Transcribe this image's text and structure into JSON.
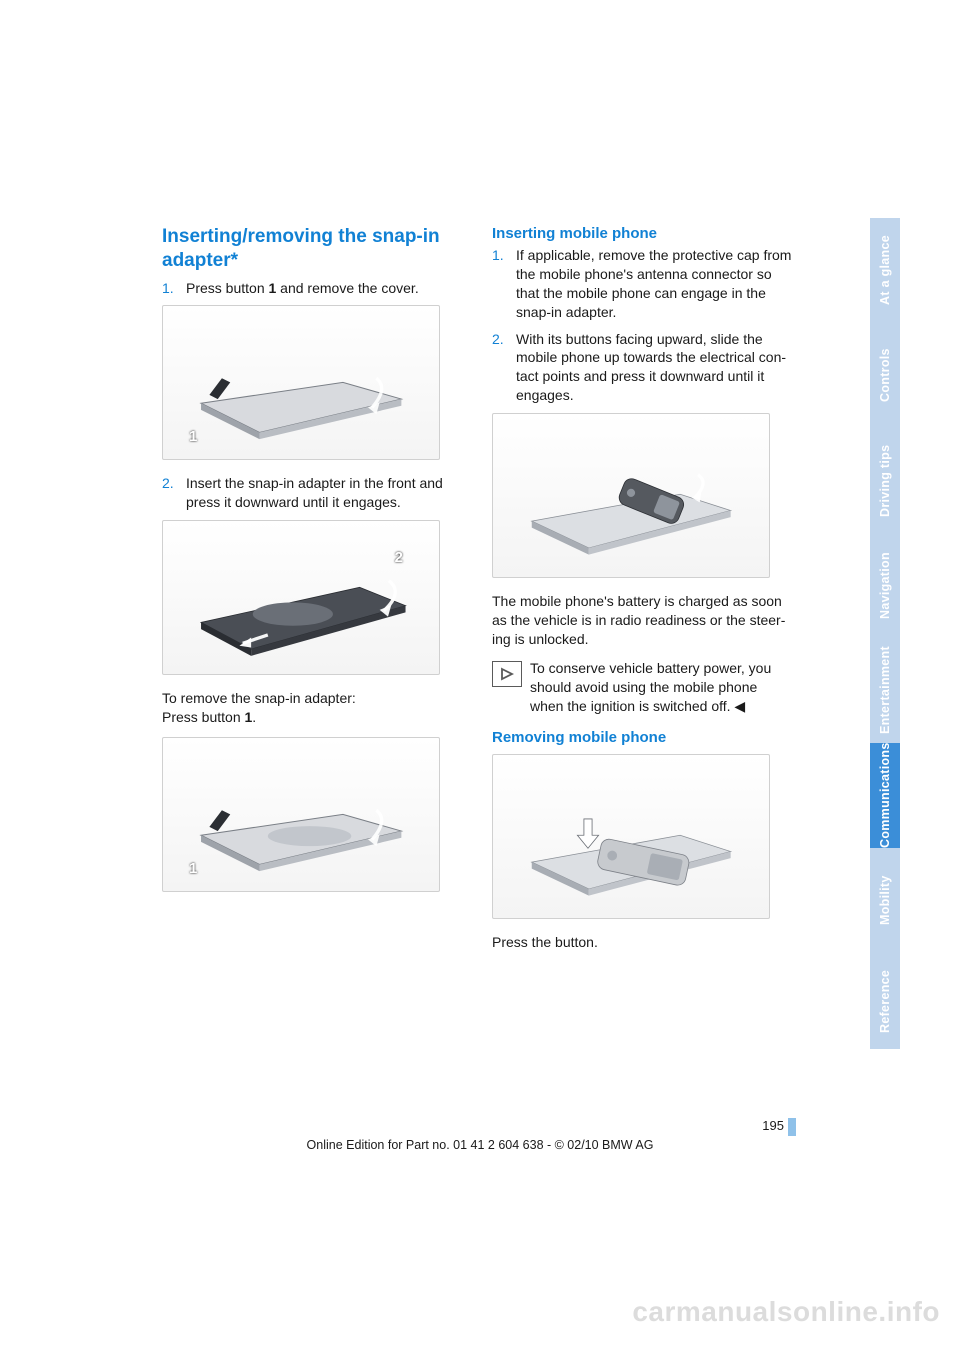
{
  "headings": {
    "main": "Inserting/removing the snap-in adapter*",
    "inserting": "Inserting mobile phone",
    "removing_phone": "Removing mobile phone"
  },
  "left": {
    "step1_pre": "Press button ",
    "step1_bold": "1",
    "step1_post": " and remove the cover.",
    "step2": "Insert the snap-in adapter in the front and press it downward until it engages.",
    "remove_line1": "To remove the snap-in adapter:",
    "remove_line2_pre": "Press button ",
    "remove_line2_bold": "1",
    "remove_line2_post": "."
  },
  "right": {
    "step1": "If applicable, remove the protective cap from the mobile phone's antenna connector so that the mobile phone can engage in the snap-in adapter.",
    "step2": "With its buttons facing upward, slide the mobile phone up towards the electrical con­tact points and press it downward until it engages.",
    "para_charge": "The mobile phone's battery is charged as soon as the vehicle is in radio readiness or the steer­ing is unlocked.",
    "note": "To conserve vehicle battery power, you should avoid using the mobile phone when the ignition is switched off.",
    "press_button": "Press the button."
  },
  "nums": {
    "one": "1.",
    "two": "2."
  },
  "figlabels": {
    "one": "1",
    "two": "2"
  },
  "tabs": [
    {
      "label": "At a glance",
      "active": false
    },
    {
      "label": "Controls",
      "active": false
    },
    {
      "label": "Driving tips",
      "active": false
    },
    {
      "label": "Navigation",
      "active": false
    },
    {
      "label": "Entertainment",
      "active": false
    },
    {
      "label": "Communications",
      "active": true
    },
    {
      "label": "Mobility",
      "active": false
    },
    {
      "label": "Reference",
      "active": false
    }
  ],
  "page_number": "195",
  "footer": "Online Edition for Part no. 01 41 2 604 638 - © 02/10 BMW AG",
  "watermark": "carmanualsonline.info",
  "colors": {
    "brand_blue": "#1181d4",
    "tab_inactive": "#c0d5ec",
    "tab_active": "#3b8ed8",
    "watermark": "#dcdcdc"
  },
  "figure_codes": {
    "f1": "MN07892CM",
    "f2": "MN07893CM",
    "f3": "MN07894CM",
    "f4": "MN07895CM",
    "f5": "MN07896CM"
  }
}
